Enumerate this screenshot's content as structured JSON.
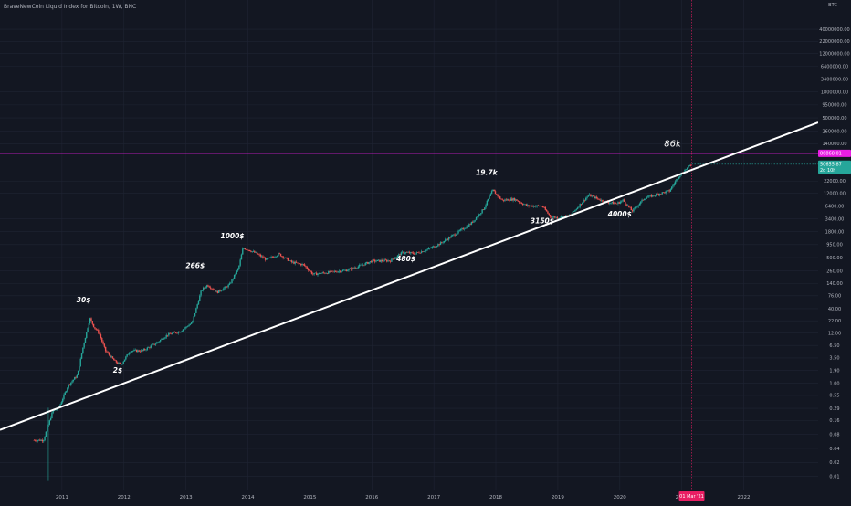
{
  "header": {
    "title": "BraveNewCoin Liquid Index for Bitcoin, 1W, BNC"
  },
  "price_scale": {
    "unit_label": "BTC",
    "price_labels": [
      {
        "text": "86868.01",
        "value": 86868.01,
        "color": "#e91ee3"
      },
      {
        "text": "50655.87",
        "value": 50655.87,
        "color": "#26a69a"
      },
      {
        "text": "2d 10h",
        "value": 38000,
        "color": "#26a69a"
      }
    ]
  },
  "crosshair": {
    "date_label": "01 Mar '21"
  },
  "colors": {
    "background": "#131722",
    "grid": "#1f2433",
    "up": "#26a69a",
    "down": "#ef5350",
    "trendline": "#ffffff",
    "hline": "#e91ee3",
    "crosshair": "#e91e63"
  },
  "chart_data": {
    "type": "candlestick",
    "title": "BraveNewCoin Liquid Index for Bitcoin, 1W, BNC",
    "y_scale": "log",
    "ylim": [
      0.005,
      170000000
    ],
    "xlim": [
      2010.0,
      2023.2
    ],
    "grid": true,
    "y_ticks": [
      {
        "label": "40000000.00",
        "value": 40000000
      },
      {
        "label": "22000000.00",
        "value": 22000000
      },
      {
        "label": "12000000.00",
        "value": 12000000
      },
      {
        "label": "6400000.00",
        "value": 6400000
      },
      {
        "label": "3400000.00",
        "value": 3400000
      },
      {
        "label": "1800000.00",
        "value": 1800000
      },
      {
        "label": "950000.00",
        "value": 950000
      },
      {
        "label": "500000.00",
        "value": 500000
      },
      {
        "label": "260000.00",
        "value": 260000
      },
      {
        "label": "140000.00",
        "value": 140000
      },
      {
        "label": "22000.00",
        "value": 22000
      },
      {
        "label": "12000.00",
        "value": 12000
      },
      {
        "label": "6400.00",
        "value": 6400
      },
      {
        "label": "3400.00",
        "value": 3400
      },
      {
        "label": "1800.00",
        "value": 1800
      },
      {
        "label": "950.00",
        "value": 950
      },
      {
        "label": "500.00",
        "value": 500
      },
      {
        "label": "260.00",
        "value": 260
      },
      {
        "label": "140.00",
        "value": 140
      },
      {
        "label": "76.00",
        "value": 76
      },
      {
        "label": "40.00",
        "value": 40
      },
      {
        "label": "22.00",
        "value": 22
      },
      {
        "label": "12.00",
        "value": 12
      },
      {
        "label": "6.50",
        "value": 6.5
      },
      {
        "label": "3.50",
        "value": 3.5
      },
      {
        "label": "1.90",
        "value": 1.9
      },
      {
        "label": "1.00",
        "value": 1
      },
      {
        "label": "0.55",
        "value": 0.55
      },
      {
        "label": "0.29",
        "value": 0.29
      },
      {
        "label": "0.16",
        "value": 0.16
      },
      {
        "label": "0.08",
        "value": 0.08
      },
      {
        "label": "0.04",
        "value": 0.04
      },
      {
        "label": "0.02",
        "value": 0.02
      },
      {
        "label": "0.01",
        "value": 0.01
      }
    ],
    "x_ticks": [
      {
        "label": "2011",
        "value": 2011.0
      },
      {
        "label": "2012",
        "value": 2012.0
      },
      {
        "label": "2013",
        "value": 2013.0
      },
      {
        "label": "2014",
        "value": 2014.0
      },
      {
        "label": "2015",
        "value": 2015.0
      },
      {
        "label": "2016",
        "value": 2016.0
      },
      {
        "label": "2017",
        "value": 2017.0
      },
      {
        "label": "2018",
        "value": 2018.0
      },
      {
        "label": "2019",
        "value": 2019.0
      },
      {
        "label": "2020",
        "value": 2020.0
      },
      {
        "label": "2021",
        "value": 2021.0
      },
      {
        "label": "2022",
        "value": 2022.0
      }
    ],
    "price_path": [
      [
        2010.55,
        0.06
      ],
      [
        2010.7,
        0.06
      ],
      [
        2010.85,
        0.25
      ],
      [
        2010.95,
        0.3
      ],
      [
        2011.1,
        0.9
      ],
      [
        2011.25,
        1.5
      ],
      [
        2011.35,
        7
      ],
      [
        2011.45,
        25
      ],
      [
        2011.52,
        16
      ],
      [
        2011.6,
        12
      ],
      [
        2011.7,
        5
      ],
      [
        2011.85,
        3
      ],
      [
        2011.95,
        2.5
      ],
      [
        2012.1,
        5
      ],
      [
        2012.3,
        5
      ],
      [
        2012.5,
        7
      ],
      [
        2012.7,
        11
      ],
      [
        2012.9,
        13
      ],
      [
        2013.1,
        20
      ],
      [
        2013.25,
        100
      ],
      [
        2013.35,
        130
      ],
      [
        2013.5,
        90
      ],
      [
        2013.7,
        130
      ],
      [
        2013.85,
        300
      ],
      [
        2013.92,
        800
      ],
      [
        2014.0,
        750
      ],
      [
        2014.15,
        600
      ],
      [
        2014.3,
        450
      ],
      [
        2014.5,
        600
      ],
      [
        2014.7,
        400
      ],
      [
        2014.9,
        350
      ],
      [
        2015.05,
        220
      ],
      [
        2015.3,
        240
      ],
      [
        2015.6,
        270
      ],
      [
        2015.85,
        350
      ],
      [
        2016.0,
        420
      ],
      [
        2016.3,
        430
      ],
      [
        2016.5,
        650
      ],
      [
        2016.7,
        610
      ],
      [
        2016.9,
        750
      ],
      [
        2017.1,
        1000
      ],
      [
        2017.4,
        1800
      ],
      [
        2017.6,
        2700
      ],
      [
        2017.8,
        5500
      ],
      [
        2017.95,
        14000
      ],
      [
        2018.02,
        11000
      ],
      [
        2018.1,
        8500
      ],
      [
        2018.3,
        9000
      ],
      [
        2018.5,
        6500
      ],
      [
        2018.75,
        6400
      ],
      [
        2018.88,
        3800
      ],
      [
        2019.0,
        3600
      ],
      [
        2019.2,
        4000
      ],
      [
        2019.4,
        8000
      ],
      [
        2019.5,
        11000
      ],
      [
        2019.75,
        8000
      ],
      [
        2019.95,
        7200
      ],
      [
        2020.05,
        8500
      ],
      [
        2020.2,
        5000
      ],
      [
        2020.4,
        9500
      ],
      [
        2020.6,
        11500
      ],
      [
        2020.8,
        13500
      ],
      [
        2020.95,
        28000
      ],
      [
        2021.05,
        38000
      ],
      [
        2021.16,
        50655.87
      ]
    ],
    "trendline": {
      "start": [
        2010.0,
        0.1
      ],
      "end": [
        2023.2,
        400000
      ]
    },
    "horizontal_line": {
      "value": 86868.01
    },
    "crosshair_x": 2021.16,
    "annotations": [
      {
        "text": "30$",
        "x": 2011.35,
        "y": 55,
        "style": "normal"
      },
      {
        "text": "2$",
        "x": 2011.9,
        "y": 1.7,
        "style": "normal"
      },
      {
        "text": "266$",
        "x": 2013.15,
        "y": 300,
        "style": "normal"
      },
      {
        "text": "1000$",
        "x": 2013.75,
        "y": 1300,
        "style": "normal"
      },
      {
        "text": "480$",
        "x": 2016.55,
        "y": 420,
        "style": "normal"
      },
      {
        "text": "19.7k",
        "x": 2017.85,
        "y": 30000,
        "style": "normal"
      },
      {
        "text": "3150$",
        "x": 2018.75,
        "y": 2700,
        "style": "normal"
      },
      {
        "text": "4000$",
        "x": 2020.0,
        "y": 3800,
        "style": "normal"
      },
      {
        "text": "86k",
        "x": 2020.85,
        "y": 120000,
        "style": "big"
      }
    ]
  }
}
